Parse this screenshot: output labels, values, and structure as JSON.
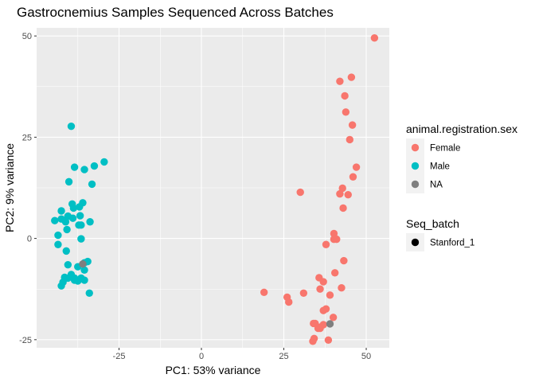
{
  "chart_data": {
    "type": "scatter",
    "title": "Gastrocnemius Samples Sequenced Across Batches",
    "xlabel": "PC1: 53% variance",
    "ylabel": "PC2: 9% variance",
    "xlim": [
      -50,
      57
    ],
    "ylim": [
      -27,
      52
    ],
    "xticks": [
      -25,
      0,
      25,
      50
    ],
    "xtick_labels": [
      "-25",
      "0",
      "25",
      "50"
    ],
    "yticks": [
      -25,
      0,
      25,
      50
    ],
    "ytick_labels": [
      "-25",
      "0",
      "25",
      "50"
    ],
    "grid": true,
    "legend_placement": "right",
    "color_legend": {
      "title": "animal.registration.sex",
      "entries": [
        {
          "label": "Female",
          "color": "#F8766D"
        },
        {
          "label": "Male",
          "color": "#00BFC4"
        },
        {
          "label": "NA",
          "color": "#7F7F7F"
        }
      ]
    },
    "shape_legend": {
      "title": "Seq_batch",
      "entries": [
        {
          "label": "Stanford_1",
          "color": "#000000"
        }
      ]
    },
    "series": [
      {
        "name": "Female",
        "color": "#F8766D",
        "points": [
          [
            52.5,
            49.5
          ],
          [
            45.5,
            39.8
          ],
          [
            42,
            38.8
          ],
          [
            43.5,
            35.2
          ],
          [
            43.8,
            31.2
          ],
          [
            45.8,
            28.0
          ],
          [
            45,
            24.4
          ],
          [
            47,
            17.6
          ],
          [
            46,
            15.2
          ],
          [
            42.8,
            12.4
          ],
          [
            42,
            11.0
          ],
          [
            30,
            11.4
          ],
          [
            44.5,
            10.8
          ],
          [
            43,
            7.5
          ],
          [
            40.2,
            1.2
          ],
          [
            40.2,
            -0.2
          ],
          [
            41,
            -0.2
          ],
          [
            37.8,
            -1.5
          ],
          [
            43.2,
            -5.5
          ],
          [
            40.5,
            -8.5
          ],
          [
            35.7,
            -9.7
          ],
          [
            37,
            -10.7
          ],
          [
            42.5,
            -12.2
          ],
          [
            36,
            -12.5
          ],
          [
            19,
            -13.3
          ],
          [
            31,
            -13.5
          ],
          [
            26,
            -14.5
          ],
          [
            39,
            -14
          ],
          [
            26.5,
            -15.7
          ],
          [
            37.8,
            -17.4
          ],
          [
            37,
            -17.8
          ],
          [
            40,
            -19.5
          ],
          [
            34,
            -21
          ],
          [
            34.5,
            -21
          ],
          [
            37,
            -21.3
          ],
          [
            36,
            -21.9
          ],
          [
            35.4,
            -22.2
          ],
          [
            36,
            -22.2
          ],
          [
            34.2,
            -24.7
          ],
          [
            33.8,
            -25.4
          ],
          [
            38.5,
            -25.1
          ]
        ]
      },
      {
        "name": "Male",
        "color": "#00BFC4",
        "points": [
          [
            -39.5,
            27.7
          ],
          [
            -29.5,
            18.9
          ],
          [
            -32.5,
            17.9
          ],
          [
            -38.5,
            17.6
          ],
          [
            -35.5,
            17.0
          ],
          [
            -40.2,
            14.0
          ],
          [
            -33.2,
            13.4
          ],
          [
            -36,
            8.8
          ],
          [
            -39.2,
            8.5
          ],
          [
            -38.8,
            7.5
          ],
          [
            -37,
            7.8
          ],
          [
            -42.5,
            6.8
          ],
          [
            -36.8,
            5.6
          ],
          [
            -40.5,
            5.5
          ],
          [
            -39,
            5.0
          ],
          [
            -42.5,
            4.8
          ],
          [
            -44.5,
            4.4
          ],
          [
            -41.2,
            4.1
          ],
          [
            -33.8,
            4.1
          ],
          [
            -37.2,
            3.3
          ],
          [
            -36.5,
            3.3
          ],
          [
            -40.8,
            2.2
          ],
          [
            -43.5,
            0.8
          ],
          [
            -36.5,
            -0.1
          ],
          [
            -43.5,
            -1.5
          ],
          [
            -41,
            -3.1
          ],
          [
            -34.5,
            -5.7
          ],
          [
            -35.5,
            -6.0
          ],
          [
            -40.5,
            -6.5
          ],
          [
            -37.5,
            -7.0
          ],
          [
            -35.5,
            -7.8
          ],
          [
            -39.5,
            -8.9
          ],
          [
            -41.5,
            -9.6
          ],
          [
            -40.5,
            -9.8
          ],
          [
            -38.5,
            -9.8
          ],
          [
            -36.5,
            -9.8
          ],
          [
            -38.5,
            -10.3
          ],
          [
            -42,
            -10.8
          ],
          [
            -35.5,
            -10.3
          ],
          [
            -37.5,
            -10.5
          ],
          [
            -42.5,
            -11.7
          ],
          [
            -34,
            -13.5
          ]
        ]
      },
      {
        "name": "NA",
        "color": "#7F7F7F",
        "points": [
          [
            -36,
            -6.3
          ],
          [
            39,
            -21.1
          ]
        ]
      }
    ]
  }
}
